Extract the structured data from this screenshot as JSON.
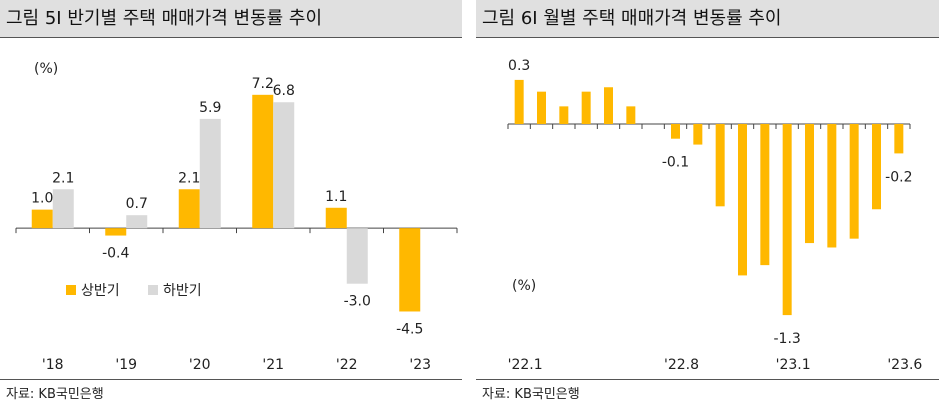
{
  "left": {
    "title": "그림 5I 반기별 주택 매매가격 변동률 추이",
    "source": "자료: KB국민은행",
    "chart_data": {
      "type": "bar",
      "unit_label": "(%)",
      "categories": [
        "'18",
        "'19",
        "'20",
        "'21",
        "'22",
        "'23"
      ],
      "ylim": [
        -5.5,
        8.0
      ],
      "series": [
        {
          "name": "상반기",
          "color": "#FFB800",
          "values": [
            1.0,
            -0.4,
            2.1,
            7.2,
            1.1,
            -4.5
          ],
          "labels": [
            "1.0",
            "-0.4",
            "2.1",
            "7.2",
            "1.1",
            "-4.5"
          ]
        },
        {
          "name": "하반기",
          "color": "#D9D9D9",
          "values": [
            2.1,
            0.7,
            5.9,
            6.8,
            -3.0,
            null
          ],
          "labels": [
            "2.1",
            "0.7",
            "5.9",
            "6.8",
            "-3.0",
            ""
          ]
        }
      ]
    }
  },
  "right": {
    "title": "그림 6I 월별 주택 매매가격 변동률 추이",
    "source": "자료: KB국민은행",
    "chart_data": {
      "type": "bar",
      "unit_label": "(%)",
      "color": "#FFB800",
      "x": [
        "'22.1",
        "'22.2",
        "'22.3",
        "'22.4",
        "'22.5",
        "'22.6",
        "'22.7",
        "'22.8",
        "'22.9",
        "'22.10",
        "'22.11",
        "'22.12",
        "'23.1",
        "'23.2",
        "'23.3",
        "'23.4",
        "'23.5",
        "'23.6"
      ],
      "x_tick_labels": [
        "'22.1",
        "'22.8",
        "'23.1",
        "'23.6"
      ],
      "values": [
        0.3,
        0.22,
        0.12,
        0.22,
        0.25,
        0.12,
        0.0,
        -0.1,
        -0.14,
        -0.56,
        -1.03,
        -0.96,
        -1.3,
        -0.81,
        -0.84,
        -0.78,
        -0.58,
        -0.2
      ],
      "value_labels": {
        "0": "0.3",
        "7": "-0.1",
        "12": "-1.3",
        "17": "-0.2"
      },
      "ylim": [
        -1.5,
        0.4
      ]
    }
  }
}
